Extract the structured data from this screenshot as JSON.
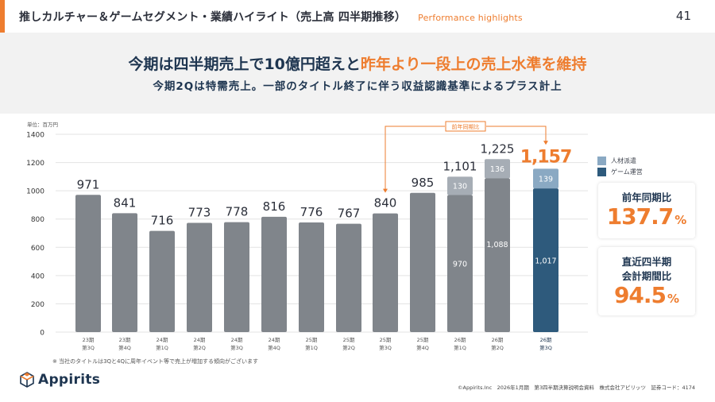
{
  "header": {
    "title": "推しカルチャー＆ゲームセグメント・業績ハイライト（売上高 四半期推移）",
    "subtitle": "Performance highlights",
    "page_number": "41"
  },
  "banner": {
    "headline_part1": "今期は四半期売上で10億円超えと",
    "headline_part2": "昨年より一段上の売上水準を維持",
    "subline": "今期2Qは特需売上。一部のタイトル終了に伴う収益認識基準によるプラス計上"
  },
  "colors": {
    "accent": "#ee7d2f",
    "bar_gray": "#80858b",
    "bar_light": "#a6adb5",
    "bar_game": "#2e5a7c",
    "bar_staffing": "#8aa9c3",
    "navy": "#1e3550"
  },
  "chart_data": {
    "type": "bar",
    "stacked": true,
    "unit_label": "単位：百万円",
    "ylim": [
      0,
      1400
    ],
    "yticks": [
      0,
      200,
      400,
      600,
      800,
      1000,
      1200,
      1400
    ],
    "grid": true,
    "categories": [
      [
        "23期",
        "第3Q"
      ],
      [
        "23期",
        "第4Q"
      ],
      [
        "24期",
        "第1Q"
      ],
      [
        "24期",
        "第2Q"
      ],
      [
        "24期",
        "第3Q"
      ],
      [
        "24期",
        "第4Q"
      ],
      [
        "25期",
        "第1Q"
      ],
      [
        "25期",
        "第2Q"
      ],
      [
        "25期",
        "第3Q"
      ],
      [
        "25期",
        "第4Q"
      ],
      [
        "26期",
        "第1Q"
      ],
      [
        "26期",
        "第2Q"
      ],
      [
        "26期",
        "第3Q"
      ]
    ],
    "series": [
      {
        "name": "ゲーム運営",
        "values": [
          971,
          841,
          716,
          773,
          778,
          816,
          776,
          767,
          840,
          985,
          970,
          1088,
          1017
        ],
        "segment_labels": [
          null,
          null,
          null,
          null,
          null,
          null,
          null,
          null,
          null,
          null,
          "970",
          "1,088",
          "1,017"
        ]
      },
      {
        "name": "人材派遣",
        "values": [
          0,
          0,
          0,
          0,
          0,
          0,
          0,
          0,
          0,
          0,
          130,
          136,
          139
        ],
        "segment_labels": [
          null,
          null,
          null,
          null,
          null,
          null,
          null,
          null,
          null,
          null,
          "130",
          "136",
          "139"
        ]
      }
    ],
    "totals": [
      "971",
      "841",
      "716",
      "773",
      "778",
      "816",
      "776",
      "767",
      "840",
      "985",
      "1,101",
      "1,225",
      "1,157"
    ],
    "highlight_index": 12,
    "annotation": {
      "label": "前年同期比",
      "from_index": 8,
      "to_index": 12
    },
    "legend": [
      {
        "name": "人材派遣",
        "color": "#8aa9c3"
      },
      {
        "name": "ゲーム運営",
        "color": "#2e5a7c"
      }
    ],
    "legend_position": "right"
  },
  "cards": [
    {
      "label_lines": [
        "前年同期比"
      ],
      "value": "137.7",
      "unit": "%"
    },
    {
      "label_lines": [
        "直近四半期",
        "会計期間比"
      ],
      "value": "94.5",
      "unit": "%"
    }
  ],
  "footnote": "※ 当社のタイトルは3Qと4Qに周年イベント等で売上が増加する傾向がございます",
  "footer": {
    "logo_text": "Appirits",
    "copyright": "©Appirits.Inc　2026年1月期　第3四半期決算説明会資料　株式会社アピリッツ　証券コード：4174"
  }
}
